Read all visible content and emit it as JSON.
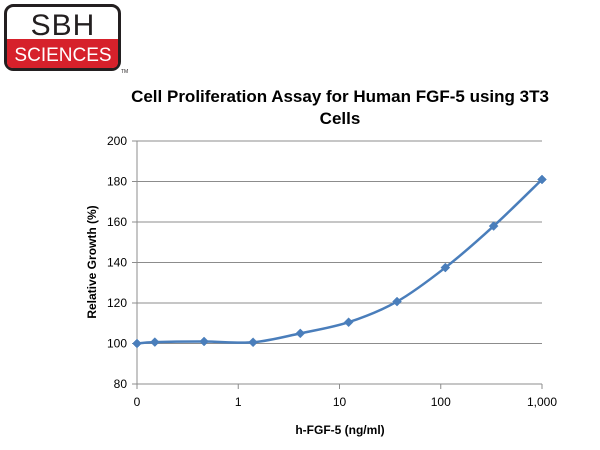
{
  "logo": {
    "top_text": "SBH",
    "bottom_text": "SCIENCES",
    "trademark": "TM",
    "colors": {
      "red": "#d6212b",
      "dark": "#231f20"
    }
  },
  "chart_data": {
    "type": "line",
    "title_lines": [
      "Cell Proliferation Assay for Human FGF-5 using 3T3",
      "Cells"
    ],
    "xlabel": "h-FGF-5 (ng/ml)",
    "ylabel": "Relative Growth (%)",
    "x_scale": "log",
    "x_ticks": [
      {
        "label": "0"
      },
      {
        "value": 1,
        "label": "1"
      },
      {
        "value": 10,
        "label": "10"
      },
      {
        "value": 100,
        "label": "100"
      },
      {
        "value": 1000,
        "label": "1,000"
      }
    ],
    "ylim": [
      80,
      200
    ],
    "y_ticks": [
      80,
      100,
      120,
      140,
      160,
      180,
      200
    ],
    "grid": "horizontal",
    "series": [
      {
        "color": "#4a7ebb",
        "marker": "diamond",
        "smooth": true,
        "points": [
          {
            "x": "0",
            "y": 100
          },
          {
            "x": 0.15,
            "y": 100.7
          },
          {
            "x": 0.46,
            "y": 101
          },
          {
            "x": 1.4,
            "y": 100.6
          },
          {
            "x": 4.1,
            "y": 105
          },
          {
            "x": 12.3,
            "y": 110.5
          },
          {
            "x": 37,
            "y": 120.7
          },
          {
            "x": 111,
            "y": 137.5
          },
          {
            "x": 333,
            "y": 158
          },
          {
            "x": 1000,
            "y": 181
          }
        ]
      }
    ]
  }
}
